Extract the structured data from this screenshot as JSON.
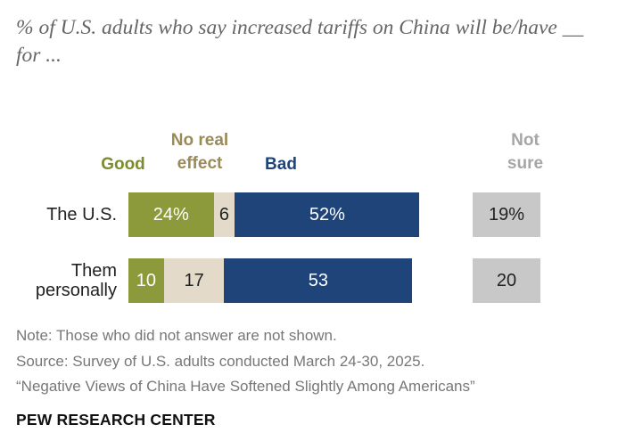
{
  "subtitle": "% of U.S. adults who say increased tariffs on China will be/have __ for ...",
  "headers": {
    "good": "Good",
    "no_real_effect_1": "No real",
    "no_real_effect_2": "effect",
    "bad": "Bad",
    "not_sure_1": "Not",
    "not_sure_2": "sure"
  },
  "colors": {
    "good": "#8c9a3c",
    "no_real_effect": "#e3dac9",
    "bad": "#1e4479",
    "not_sure": "#c8c8c8",
    "good_header": "#7a8c2f",
    "no_real_effect_header": "#9a8a55",
    "not_sure_header": "#a6a6a6"
  },
  "chart_data": {
    "type": "bar",
    "stacked": true,
    "orientation": "horizontal",
    "categories": [
      "The U.S.",
      "Them personally"
    ],
    "series": [
      {
        "name": "Good",
        "values": [
          24,
          10
        ],
        "labels": [
          "24%",
          "10"
        ]
      },
      {
        "name": "No real effect",
        "values": [
          6,
          17
        ],
        "labels": [
          "6",
          "17"
        ]
      },
      {
        "name": "Bad",
        "values": [
          52,
          53
        ],
        "labels": [
          "52%",
          "53"
        ]
      },
      {
        "name": "Not sure",
        "values": [
          19,
          20
        ],
        "labels": [
          "19%",
          "20"
        ],
        "separate": true
      }
    ]
  },
  "rows": [
    {
      "label_lines": [
        "The U.S."
      ]
    },
    {
      "label_lines": [
        "Them",
        "personally"
      ]
    }
  ],
  "footer": {
    "note": "Note: Those who did not answer are not shown.",
    "source": "Source: Survey of U.S. adults conducted March 24-30, 2025.",
    "report": "“Negative Views of China Have Softened Slightly Among Americans”",
    "brand": "PEW RESEARCH CENTER"
  }
}
